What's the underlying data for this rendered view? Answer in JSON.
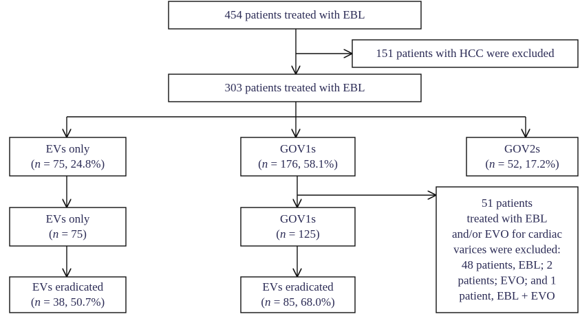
{
  "nodes": [
    {
      "lines": [
        "454 patients treated with EBL"
      ]
    },
    {
      "lines": [
        "151 patients with HCC were excluded"
      ]
    },
    {
      "lines": [
        "303 patients treated with EBL"
      ]
    },
    {
      "lines": [
        "EVs only"
      ],
      "stat": [
        "(",
        "n",
        " = 75, 24.8%)"
      ]
    },
    {
      "lines": [
        "GOV1s"
      ],
      "stat": [
        "(",
        "n",
        " = 176, 58.1%)"
      ]
    },
    {
      "lines": [
        "GOV2s"
      ],
      "stat": [
        "(",
        "n",
        " = 52, 17.2%)"
      ]
    },
    {
      "lines": [
        "EVs only"
      ],
      "stat": [
        "(",
        "n",
        " = 75)"
      ]
    },
    {
      "lines": [
        "GOV1s"
      ],
      "stat": [
        "(",
        "n",
        " = 125)"
      ]
    },
    {
      "lines": [
        "EVs eradicated"
      ],
      "stat": [
        "(",
        "n",
        " = 38, 50.7%)"
      ]
    },
    {
      "lines": [
        "EVs eradicated"
      ],
      "stat": [
        "(",
        "n",
        " = 85, 68.0%)"
      ]
    },
    {
      "lines": [
        "51 patients",
        "treated with EBL",
        "and/or EVO for cardiac",
        "varices were excluded:",
        "48 patients, EBL; 2",
        "patients; EVO; and 1",
        "patient, EBL + EVO"
      ]
    }
  ]
}
